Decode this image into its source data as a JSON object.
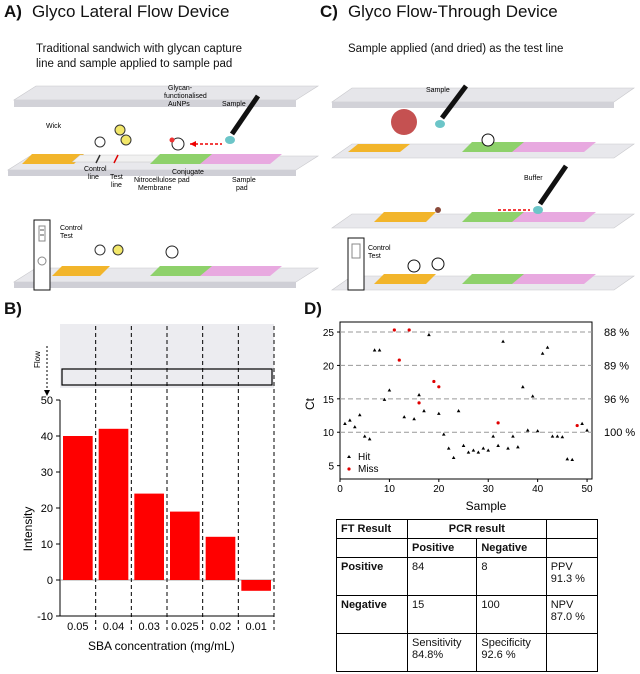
{
  "panelA": {
    "letter": "A)",
    "title": "Glyco Lateral Flow Device",
    "subtitle_line1": "Traditional sandwich with glycan capture",
    "subtitle_line2": "line and sample applied to sample pad",
    "labels": {
      "wick": "Wick",
      "glycan1": "Glycan-",
      "glycan2": "functionalised",
      "glycan3": "AuNPs",
      "sample": "Sample",
      "control1": "Control",
      "control2": "line",
      "test1": "Test",
      "test2": "line",
      "nitro1": "Nitrocellulose",
      "nitro2": "Membrane",
      "conj1": "Conjugate",
      "conj2": "pad",
      "spad1": "Sample",
      "spad2": "pad",
      "ctrl": "Control",
      "test": "Test"
    }
  },
  "panelC": {
    "letter": "C)",
    "title": "Glyco Flow-Through Device",
    "subtitle": "Sample applied (and dried) as the test line",
    "labels": {
      "sample": "Sample",
      "buffer": "Buffer",
      "ctrl": "Control",
      "test": "Test"
    }
  },
  "panelB": {
    "letter": "B)",
    "flow_label": "Flow",
    "chart_data": {
      "type": "bar",
      "categories": [
        "0.05",
        "0.04",
        "0.03",
        "0.025",
        "0.02",
        "0.01"
      ],
      "values": [
        40,
        42,
        24,
        19,
        12,
        -3
      ],
      "xlabel": "SBA concentration (mg/mL)",
      "ylabel": "Intensity",
      "ylim": [
        -10,
        50
      ],
      "yticks": [
        "-10",
        "0",
        "10",
        "20",
        "30",
        "40",
        "50"
      ],
      "bar_color": "#ff0000"
    }
  },
  "panelD": {
    "letter": "D)",
    "chart_data": {
      "type": "scatter",
      "xlabel": "Sample",
      "ylabel": "Ct",
      "xlim": [
        0,
        51
      ],
      "ylim": [
        3,
        26.5
      ],
      "xticks": [
        "0",
        "10",
        "20",
        "30",
        "40",
        "50"
      ],
      "yticks": [
        "5",
        "10",
        "15",
        "20",
        "25"
      ],
      "legend": {
        "position": "bottom-left",
        "hit": "Hit",
        "miss": "Miss"
      },
      "hline_labels": [
        {
          "y": 25,
          "label": "88 %"
        },
        {
          "y": 20,
          "label": "89 %"
        },
        {
          "y": 15,
          "label": "96 %"
        },
        {
          "y": 10,
          "label": "100 %"
        }
      ],
      "series": [
        {
          "name": "Hit",
          "color": "#000000",
          "points": [
            [
              1,
              11.3
            ],
            [
              2,
              11.8
            ],
            [
              3,
              10.8
            ],
            [
              4,
              12.6
            ],
            [
              5,
              9.4
            ],
            [
              6,
              9.0
            ],
            [
              7,
              22.3
            ],
            [
              8,
              22.3
            ],
            [
              9,
              14.9
            ],
            [
              10,
              16.3
            ],
            [
              13,
              12.3
            ],
            [
              15,
              12.0
            ],
            [
              16,
              15.6
            ],
            [
              17,
              13.2
            ],
            [
              18,
              24.6
            ],
            [
              20,
              12.8
            ],
            [
              21,
              9.7
            ],
            [
              22,
              7.6
            ],
            [
              23,
              6.2
            ],
            [
              24,
              13.2
            ],
            [
              25,
              8.0
            ],
            [
              26,
              7.0
            ],
            [
              27,
              7.3
            ],
            [
              28,
              7.0
            ],
            [
              29,
              7.6
            ],
            [
              30,
              7.3
            ],
            [
              31,
              9.4
            ],
            [
              32,
              8.0
            ],
            [
              33,
              23.6
            ],
            [
              34,
              7.6
            ],
            [
              35,
              9.4
            ],
            [
              36,
              7.8
            ],
            [
              37,
              16.8
            ],
            [
              38,
              10.3
            ],
            [
              39,
              15.4
            ],
            [
              40,
              10.2
            ],
            [
              41,
              21.8
            ],
            [
              42,
              22.7
            ],
            [
              43,
              9.4
            ],
            [
              44,
              9.4
            ],
            [
              45,
              9.3
            ],
            [
              46,
              6.0
            ],
            [
              47,
              5.9
            ],
            [
              49,
              11.3
            ],
            [
              50,
              10.3
            ]
          ]
        },
        {
          "name": "Miss",
          "color": "#e00000",
          "points": [
            [
              11,
              25.3
            ],
            [
              12,
              20.8
            ],
            [
              14,
              25.3
            ],
            [
              16,
              14.4
            ],
            [
              19,
              17.6
            ],
            [
              20,
              16.8
            ],
            [
              32,
              11.4
            ],
            [
              48,
              11.0
            ]
          ]
        }
      ]
    },
    "table": {
      "h_ft": "FT Result",
      "h_pcr": "PCR result",
      "h_pos": "Positive",
      "h_neg": "Negative",
      "r1_label": "Positive",
      "r1_pos": "84",
      "r1_neg": "8",
      "r1_m1": "PPV",
      "r1_m2": "91.3 %",
      "r2_label": "Negative",
      "r2_pos": "15",
      "r2_neg": "100",
      "r2_m1": "NPV",
      "r2_m2": "87.0 %",
      "r3_pos1": "Sensitivity",
      "r3_pos2": "84.8%",
      "r3_neg1": "Specificity",
      "r3_neg2": "92.6 %"
    }
  }
}
